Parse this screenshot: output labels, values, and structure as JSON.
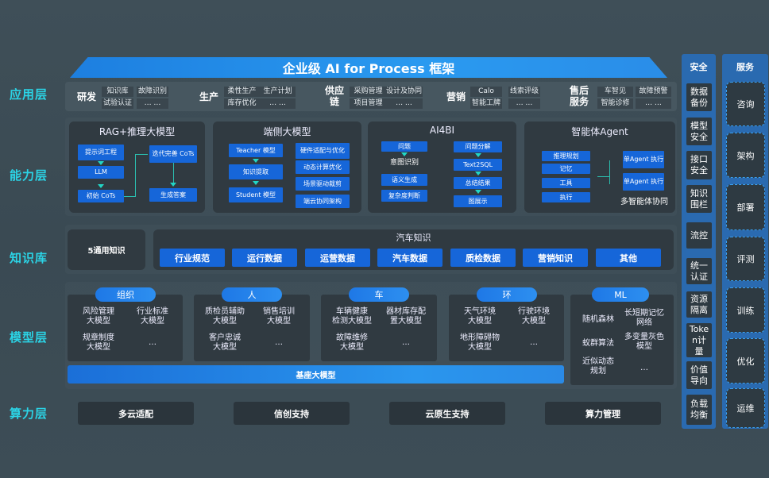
{
  "title": "企业级 AI for Process 框架",
  "layers": {
    "app": "应用层",
    "capability": "能力层",
    "knowledge": "知识库",
    "model": "模型层",
    "compute": "算力层"
  },
  "app_groups": [
    {
      "name": "研发",
      "cells": [
        "知识库",
        "试验认证",
        "故障识别",
        "… …"
      ]
    },
    {
      "name": "生产",
      "cells": [
        "柔性生产",
        "库存优化",
        "生产计划",
        "… …"
      ]
    },
    {
      "name": "供应链",
      "cells": [
        "采购管理",
        "项目管理",
        "设计及协同",
        "… …"
      ]
    },
    {
      "name": "营销",
      "cells": [
        "Calo",
        "智能工牌",
        "线索评级",
        "… …"
      ]
    },
    {
      "name": "售后服务",
      "cells": [
        "车智见",
        "智能诊修",
        "故障预警",
        "… …"
      ]
    }
  ],
  "capability": {
    "rag": {
      "title": "RAG+推理大模型",
      "items": [
        "提示词工程",
        "LLM",
        "初始 CoTs",
        "迭代完善 CoTs",
        "生成答案"
      ]
    },
    "edge": {
      "title": "端侧大模型",
      "left": [
        "Teacher 模型",
        "知识提取",
        "Student 模型"
      ],
      "right": [
        "硬件适配与优化",
        "动态计算优化",
        "场景驱动裁剪",
        "端云协同架构"
      ]
    },
    "ai4bi": {
      "title": "AI4BI",
      "left": [
        "问题",
        "意图识别",
        "语义生成",
        "复杂度判断"
      ],
      "right": [
        "问题分解",
        "Text2SQL",
        "总结结果",
        "图展示"
      ]
    },
    "agent": {
      "title": "智能体Agent",
      "left": [
        "推理规划",
        "记忆",
        "工具",
        "执行"
      ],
      "right": [
        "单Agent 执行",
        "单Agent 执行"
      ],
      "caption": "多智能体协同"
    }
  },
  "knowledge": {
    "general": "5通用知识",
    "auto_title": "汽车知识",
    "items": [
      "行业规范",
      "运行数据",
      "运营数据",
      "汽车数据",
      "质检数据",
      "营销知识",
      "其他"
    ]
  },
  "models": [
    {
      "pill": "组织",
      "items": [
        "风险管理\n大模型",
        "行业标准\n大模型",
        "规章制度\n大模型",
        "…"
      ]
    },
    {
      "pill": "人",
      "items": [
        "质检员辅助\n大模型",
        "销售培训\n大模型",
        "客户忠诚\n大模型",
        "…"
      ]
    },
    {
      "pill": "车",
      "items": [
        "车辆健康\n检测大模型",
        "器材库存配\n置大模型",
        "故障维修\n大模型",
        "…"
      ]
    },
    {
      "pill": "环",
      "items": [
        "天气环境\n大模型",
        "行驶环境\n大模型",
        "地形障碍物\n大模型",
        "…"
      ]
    },
    {
      "pill": "ML",
      "items": [
        "随机森林",
        "长短期记忆\n网络",
        "蚁群算法",
        "多变量灰色\n模型",
        "近似动态\n规划",
        "…"
      ]
    }
  ],
  "base_model": "基座大模型",
  "compute": [
    "多云适配",
    "信创支持",
    "云原生支持",
    "算力管理"
  ],
  "security": {
    "title": "安全",
    "items": [
      "数据备份",
      "模型安全",
      "接口安全",
      "知识围栏",
      "流控",
      "统一认证",
      "资源隔离",
      "Token计量",
      "价值导向",
      "负载均衡"
    ]
  },
  "service": {
    "title": "服务",
    "items": [
      "咨询",
      "架构",
      "部署",
      "评测",
      "训练",
      "优化",
      "运维"
    ]
  },
  "colors": {
    "accent_blue": "#1666d9",
    "layer_label": "#2bd4e6",
    "panel": "#303a41",
    "arrow": "#22d6c6"
  }
}
